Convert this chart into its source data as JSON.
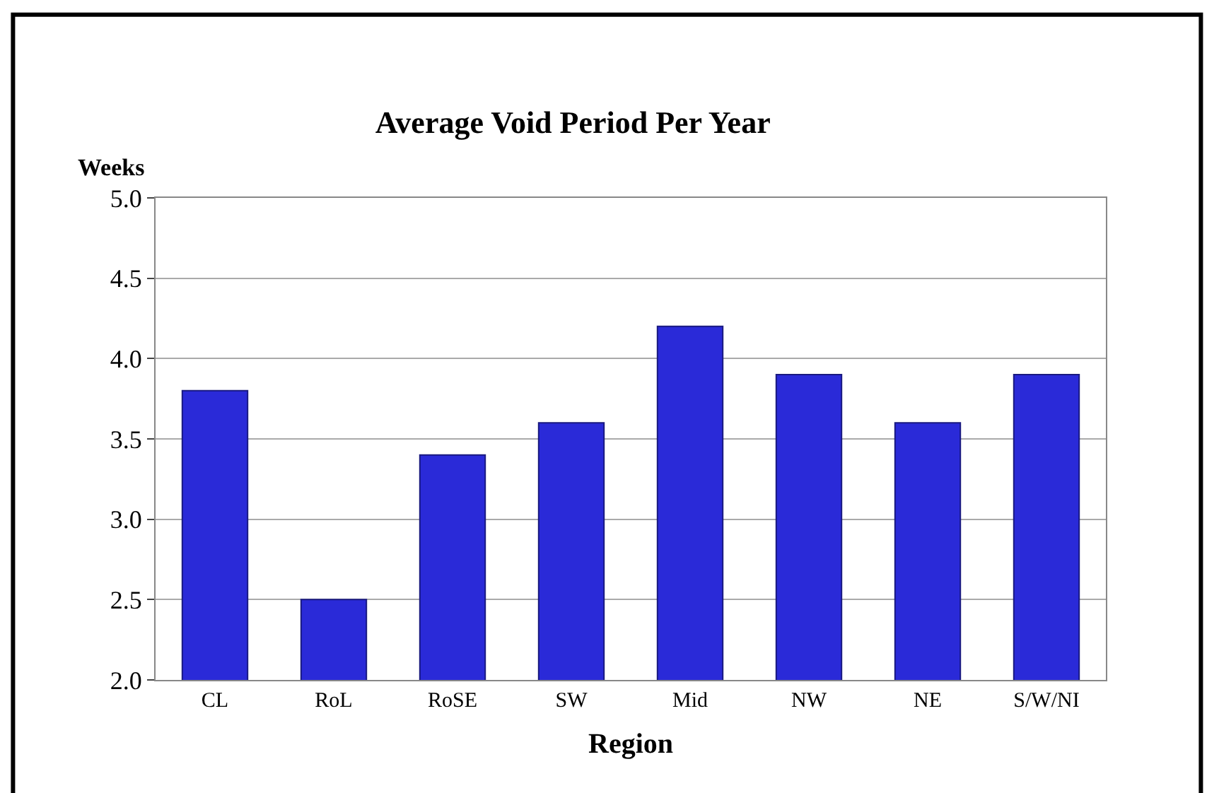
{
  "chart_data": {
    "type": "bar",
    "title": "Average Void Period Per Year",
    "xlabel": "Region",
    "ylabel": "Weeks",
    "categories": [
      "CL",
      "RoL",
      "RoSE",
      "SW",
      "Mid",
      "NW",
      "NE",
      "S/W/NI"
    ],
    "values": [
      3.8,
      2.5,
      3.4,
      3.6,
      4.2,
      3.9,
      3.6,
      3.9
    ],
    "color": "#2a2ad8",
    "ylim": [
      2.0,
      5.0
    ],
    "yticks": [
      {
        "value": 2.0,
        "label": "2.0"
      },
      {
        "value": 2.5,
        "label": "2.5"
      },
      {
        "value": 3.0,
        "label": "3.0"
      },
      {
        "value": 3.5,
        "label": "3.5"
      },
      {
        "value": 4.0,
        "label": "4.0"
      },
      {
        "value": 4.5,
        "label": "4.5"
      },
      {
        "value": 5.0,
        "label": "5.0"
      }
    ],
    "grid": "y"
  }
}
